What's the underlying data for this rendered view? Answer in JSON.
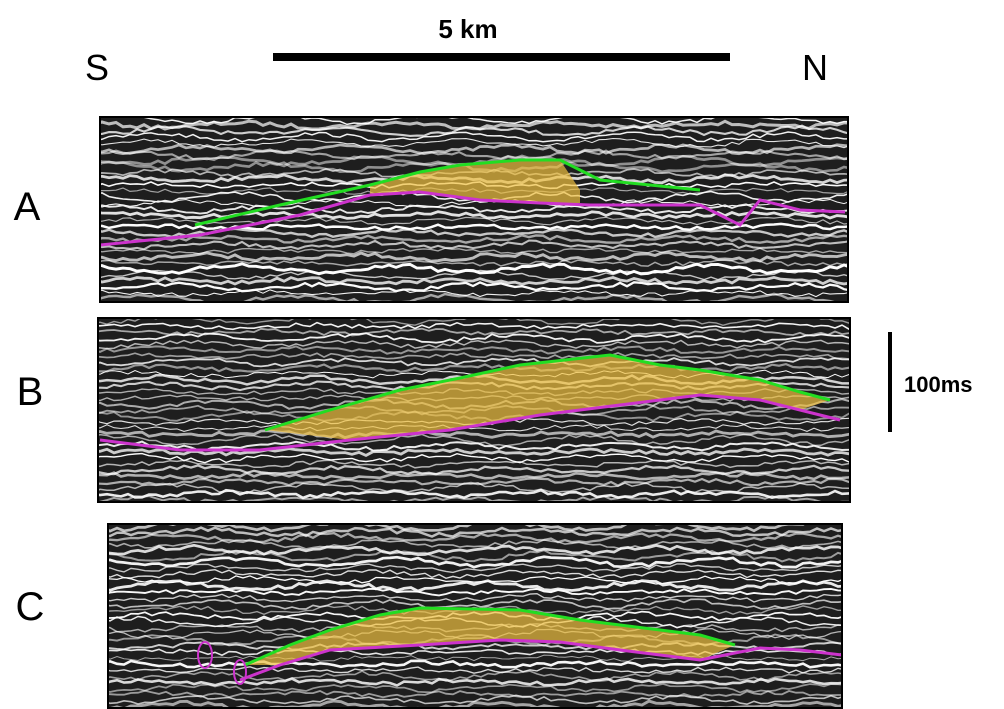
{
  "scale_bar": {
    "label": "5 km"
  },
  "directions": {
    "left": "S",
    "right": "N"
  },
  "panels": [
    {
      "label": "A"
    },
    {
      "label": "B"
    },
    {
      "label": "C"
    }
  ],
  "time_scale": {
    "label": "100ms"
  }
}
